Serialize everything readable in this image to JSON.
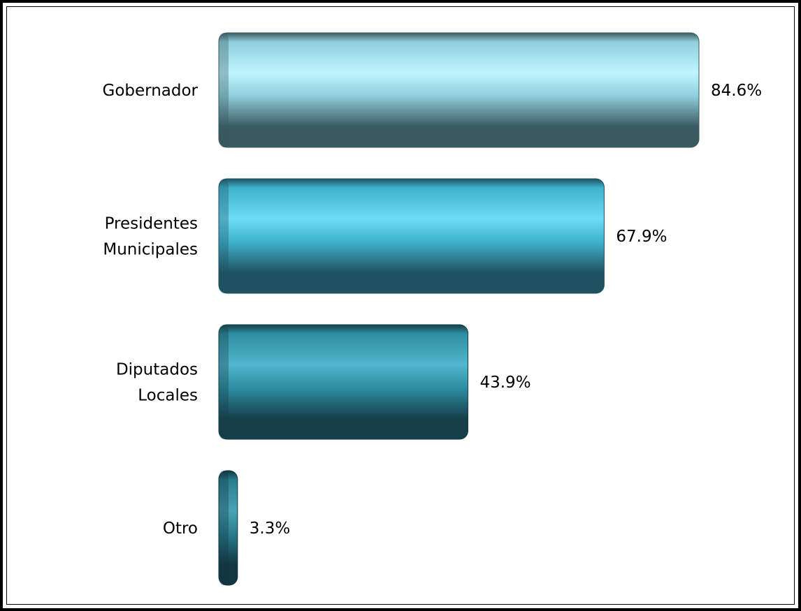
{
  "chart_data": {
    "type": "bar",
    "orientation": "horizontal",
    "categories": [
      [
        "Gobernador"
      ],
      [
        "Presidentes",
        "Municipales"
      ],
      [
        "Diputados",
        "Locales"
      ],
      [
        "Otro"
      ]
    ],
    "values": [
      84.6,
      67.9,
      43.9,
      3.3
    ],
    "value_labels": [
      "84.6%",
      "67.9%",
      "43.9%",
      "3.3%"
    ],
    "xlim": [
      0,
      84.6
    ],
    "grid": false,
    "legend": "none",
    "colors": {
      "bars": [
        {
          "light": "#bff5ff",
          "mid": "#8fcfdb",
          "dark": "#3a5a61"
        },
        {
          "light": "#6ddcf5",
          "mid": "#3fb3cc",
          "dark": "#1f5260"
        },
        {
          "light": "#52b6cc",
          "mid": "#2e8ea3",
          "dark": "#163f49"
        },
        {
          "light": "#4aa3b6",
          "mid": "#2a7d8e",
          "dark": "#123740"
        }
      ]
    }
  }
}
